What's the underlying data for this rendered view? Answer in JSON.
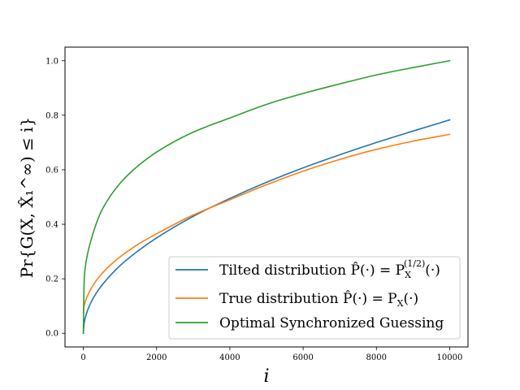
{
  "chart_data": {
    "type": "line",
    "title": "",
    "xlabel": "i",
    "ylabel": "Pr{G(X, X̂₁^∞) ≤ i}",
    "xlim": [
      -500,
      10500
    ],
    "ylim": [
      -0.05,
      1.05
    ],
    "xticks": [
      0,
      2000,
      4000,
      6000,
      8000,
      10000
    ],
    "xtick_labels": [
      "0",
      "2000",
      "4000",
      "6000",
      "8000",
      "10000"
    ],
    "yticks": [
      0.0,
      0.2,
      0.4,
      0.6,
      0.8,
      1.0
    ],
    "ytick_labels": [
      "0.0",
      "0.2",
      "0.4",
      "0.6",
      "0.8",
      "1.0"
    ],
    "grid": false,
    "legend_position": "bottom-right",
    "x": [
      0,
      25,
      100,
      250,
      500,
      1000,
      1500,
      2000,
      3000,
      4000,
      5000,
      6000,
      7000,
      8000,
      9000,
      10000
    ],
    "series": [
      {
        "name": "Tilted distribution P̂(·) = P_X^(1/2)(·)",
        "color": "#1f77b4",
        "values": [
          0.0,
          0.039,
          0.078,
          0.124,
          0.175,
          0.248,
          0.303,
          0.35,
          0.429,
          0.495,
          0.554,
          0.607,
          0.655,
          0.7,
          0.742,
          0.783
        ]
      },
      {
        "name": "True distribution P̂(·) = P_X(·)",
        "color": "#ff7f0e",
        "values": [
          0.075,
          0.103,
          0.133,
          0.173,
          0.218,
          0.28,
          0.327,
          0.365,
          0.434,
          0.49,
          0.545,
          0.595,
          0.638,
          0.675,
          0.705,
          0.73
        ]
      },
      {
        "name": "Optimal Synchronized Guessing",
        "color": "#2ca02c",
        "values": [
          0.0,
          0.2,
          0.28,
          0.36,
          0.45,
          0.55,
          0.615,
          0.665,
          0.738,
          0.79,
          0.84,
          0.88,
          0.915,
          0.948,
          0.975,
          1.0
        ]
      }
    ],
    "legend": {
      "entries": [
        {
          "text": "Tilted distribution P̂(·) = P",
          "sub": "X",
          "sup": "(1/2)",
          "tail": "(·)"
        },
        {
          "text": "True distribution P̂(·) = P",
          "sub": "X",
          "sup": "",
          "tail": "(·)"
        },
        {
          "text": "Optimal Synchronized Guessing",
          "sub": "",
          "sup": "",
          "tail": ""
        }
      ]
    }
  }
}
